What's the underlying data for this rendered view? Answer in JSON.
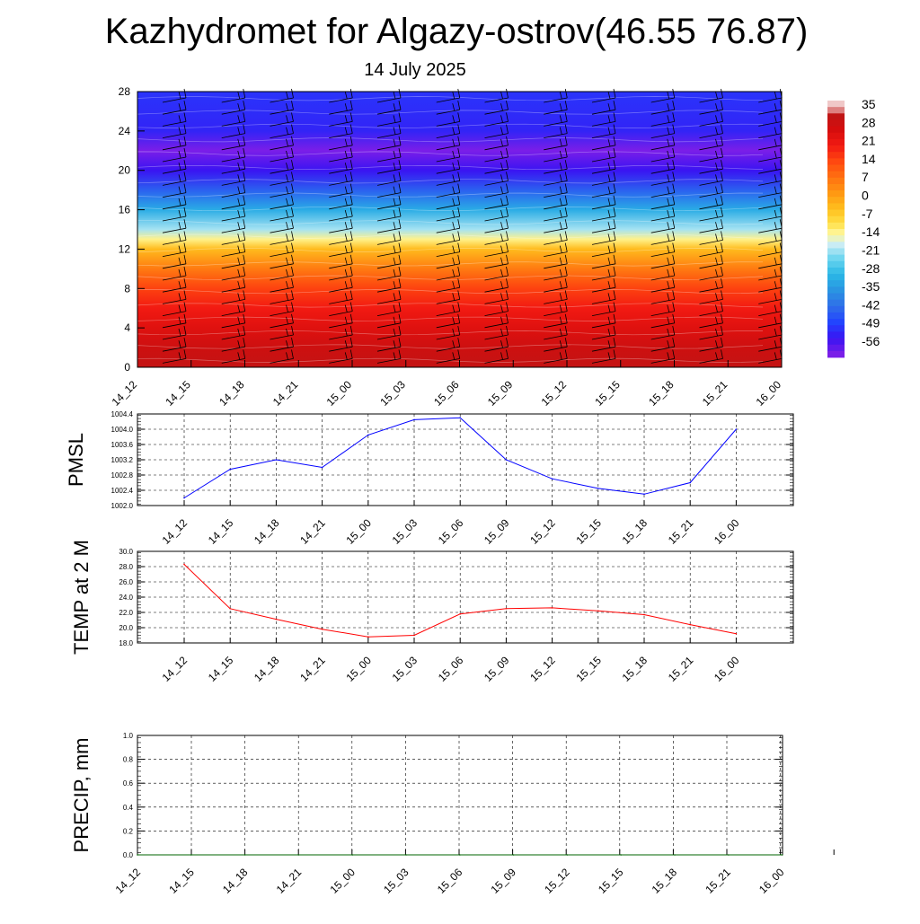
{
  "title": "Kazhydromet for Algazy-ostrov(46.55 76.87)",
  "subtitle": "14 July 2025",
  "colors": {
    "background": "#ffffff",
    "pmsl_line": "#0000ff",
    "temp_line": "#ff0000",
    "precip_line": "#006400",
    "grid": "#000000"
  },
  "chart_data": [
    {
      "type": "heatmap",
      "name": "upper-air-temperature",
      "x": [
        "14_12",
        "14_15",
        "14_18",
        "14_21",
        "15_00",
        "15_03",
        "15_06",
        "15_09",
        "15_12",
        "15_15",
        "15_18",
        "15_21",
        "16_00"
      ],
      "y_ticks": [
        "0",
        "4",
        "8",
        "12",
        "16",
        "20",
        "24",
        "28"
      ],
      "ylim": [
        0,
        28
      ],
      "colorbar_labels": [
        "35",
        "28",
        "21",
        "14",
        "7",
        "0",
        "-7",
        "-14",
        "-21",
        "-28",
        "-35",
        "-42",
        "-49",
        "-56"
      ],
      "value_by_height": [
        {
          "y": 0,
          "value": 30
        },
        {
          "y": 2,
          "value": 28
        },
        {
          "y": 4,
          "value": 24
        },
        {
          "y": 6,
          "value": 20
        },
        {
          "y": 8,
          "value": 15
        },
        {
          "y": 10,
          "value": 7
        },
        {
          "y": 12,
          "value": -3
        },
        {
          "y": 13,
          "value": -12
        },
        {
          "y": 14,
          "value": -19
        },
        {
          "y": 16,
          "value": -30
        },
        {
          "y": 18,
          "value": -42
        },
        {
          "y": 20,
          "value": -52
        },
        {
          "y": 22,
          "value": -58
        },
        {
          "y": 24,
          "value": -50
        },
        {
          "y": 28,
          "value": -48
        }
      ],
      "wind_barbs": true
    },
    {
      "type": "line",
      "name": "pmsl",
      "ylabel": "PMSL",
      "x": [
        "14_12",
        "14_15",
        "14_18",
        "14_21",
        "15_00",
        "15_03",
        "15_06",
        "15_09",
        "15_12",
        "15_15",
        "15_18",
        "15_21",
        "16_00"
      ],
      "ylim": [
        1002.0,
        1004.4
      ],
      "y_ticks": [
        "1002.0",
        "1002.4",
        "1002.8",
        "1003.2",
        "1003.6",
        "1004.0",
        "1004.4"
      ],
      "grid": true,
      "series": [
        {
          "values": [
            1002.2,
            1002.95,
            1003.2,
            1003.0,
            1003.85,
            1004.25,
            1004.3,
            1003.2,
            1002.7,
            1002.45,
            1002.3,
            1002.6,
            1004.0
          ]
        }
      ]
    },
    {
      "type": "line",
      "name": "temp",
      "ylabel": "TEMP at 2 M",
      "x": [
        "14_12",
        "14_15",
        "14_18",
        "14_21",
        "15_00",
        "15_03",
        "15_06",
        "15_09",
        "15_12",
        "15_15",
        "15_18",
        "15_21",
        "16_00"
      ],
      "ylim": [
        18.0,
        30.0
      ],
      "y_ticks": [
        "18.0",
        "20.0",
        "22.0",
        "24.0",
        "26.0",
        "28.0",
        "30.0"
      ],
      "grid": true,
      "series": [
        {
          "values": [
            28.3,
            22.5,
            21.1,
            19.8,
            18.8,
            19.0,
            21.8,
            22.5,
            22.6,
            22.2,
            21.7,
            20.4,
            19.2
          ]
        }
      ]
    },
    {
      "type": "line",
      "name": "precip",
      "ylabel": "PRECIP, mm",
      "x": [
        "14_12",
        "14_15",
        "14_18",
        "14_21",
        "15_00",
        "15_03",
        "15_06",
        "15_09",
        "15_12",
        "15_15",
        "15_18",
        "15_21",
        "16_00"
      ],
      "ylim": [
        0.0,
        1.0
      ],
      "y_ticks": [
        "0.0",
        "0.2",
        "0.4",
        "0.6",
        "0.8",
        "1.0"
      ],
      "grid": true,
      "series": [
        {
          "values": [
            0,
            0,
            0,
            0,
            0,
            0,
            0,
            0,
            0,
            0,
            0,
            0,
            0
          ]
        }
      ]
    }
  ]
}
